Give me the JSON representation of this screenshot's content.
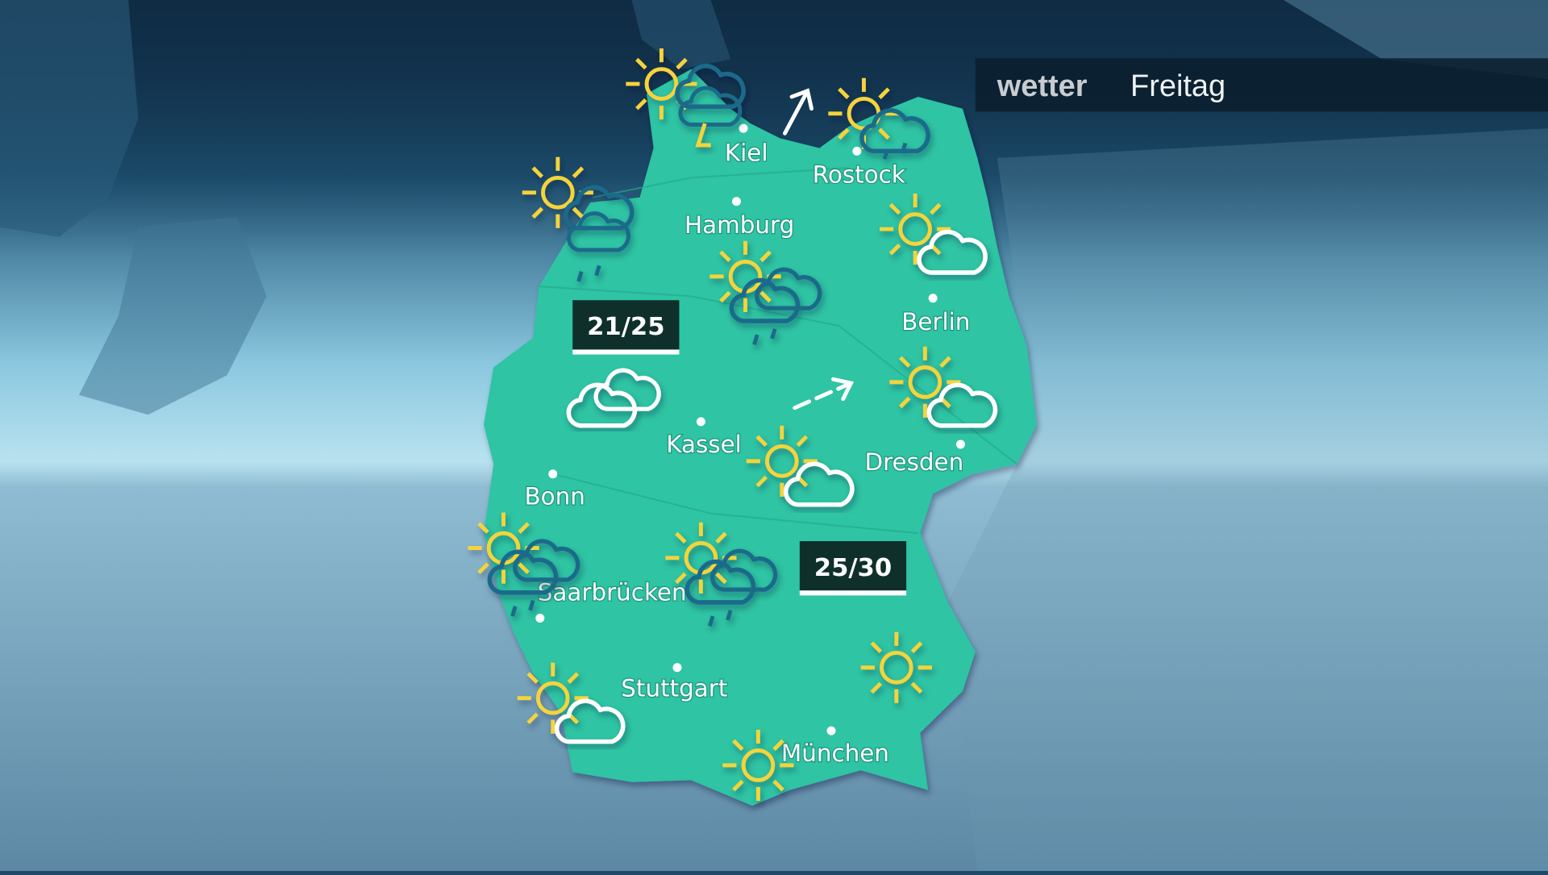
{
  "header": {
    "brand": "wetter",
    "day": "Freitag"
  },
  "colors": {
    "land": "#2ec4a4",
    "sea_dark": "#16344f",
    "sea_light": "#a9d8ea",
    "sun": "#f5d33a",
    "cloud_dark": "#1a6a8a",
    "cloud_light": "#ffffff",
    "label_box": "#0f2f2a"
  },
  "cities": [
    {
      "name": "Kiel"
    },
    {
      "name": "Rostock"
    },
    {
      "name": "Hamburg"
    },
    {
      "name": "Berlin"
    },
    {
      "name": "Kassel"
    },
    {
      "name": "Dresden"
    },
    {
      "name": "Bonn"
    },
    {
      "name": "Saarbrücken"
    },
    {
      "name": "Stuttgart"
    },
    {
      "name": "München"
    }
  ],
  "temperatures": [
    {
      "value": "21/25"
    },
    {
      "value": "25/30"
    }
  ],
  "weather_icons": [
    "sun-thunderstorm-icon",
    "sun-rain-shower-icon",
    "sun-dark-cloud-icon",
    "partly-cloudy-icon",
    "sun-clouds-rain-icon",
    "cloudy-icon",
    "partly-cloudy-icon",
    "partly-cloudy-icon",
    "sun-clouds-rain-icon",
    "sun-clouds-rain-icon",
    "sun-icon",
    "partly-cloudy-icon",
    "sun-icon"
  ],
  "wind_arrows": [
    "wind-arrow-north-northeast-icon",
    "wind-arrow-east-northeast-icon"
  ]
}
